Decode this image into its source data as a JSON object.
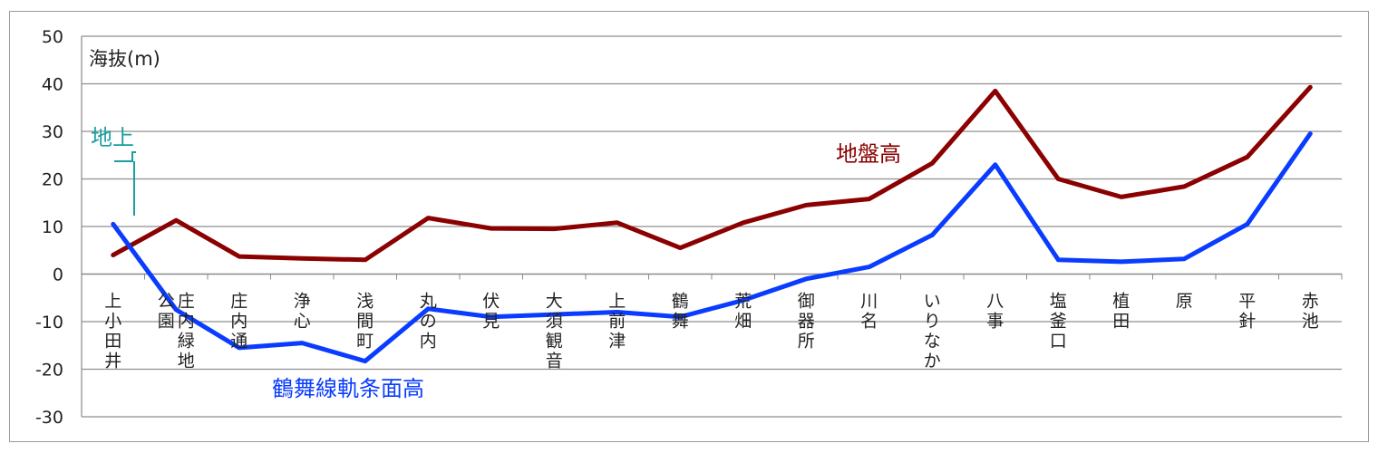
{
  "chart_data": {
    "type": "line",
    "ylabel": "海抜(m)",
    "ylim": [
      -30,
      50
    ],
    "yticks": [
      50,
      40,
      30,
      20,
      10,
      0,
      -10,
      -20,
      -30
    ],
    "grid": true,
    "categories": [
      "上小田井",
      "庄内緑地公園",
      "庄内通",
      "浄心",
      "浅間町",
      "丸の内",
      "伏見",
      "大須観音",
      "上前津",
      "鶴舞",
      "荒畑",
      "御器所",
      "川名",
      "いりなか",
      "八事",
      "塩釜口",
      "植田",
      "原",
      "平針",
      "赤池"
    ],
    "series": [
      {
        "name": "地盤高",
        "color": "#8b0000",
        "values": [
          4,
          11.3,
          3.7,
          3.3,
          3,
          11.8,
          9.6,
          9.5,
          10.8,
          5.5,
          10.8,
          14.5,
          15.8,
          23.3,
          38.5,
          20,
          16.2,
          18.4,
          24.6,
          39.3
        ]
      },
      {
        "name": "鶴舞線軌条面高",
        "color": "#0a3cff",
        "values": [
          10.5,
          -7.5,
          -15.5,
          -14.5,
          -18.3,
          -7.3,
          -9,
          -8.5,
          -8,
          -9,
          -5.5,
          -1,
          1.5,
          8.2,
          23,
          3,
          2.6,
          3.2,
          10.5,
          29.5
        ]
      }
    ],
    "annotations": [
      {
        "text": "地上",
        "color": "#1a9e9e"
      },
      {
        "text": "地盤高",
        "color": "#8b0000"
      },
      {
        "text": "鶴舞線軌条面高",
        "color": "#0a3cff"
      }
    ]
  }
}
